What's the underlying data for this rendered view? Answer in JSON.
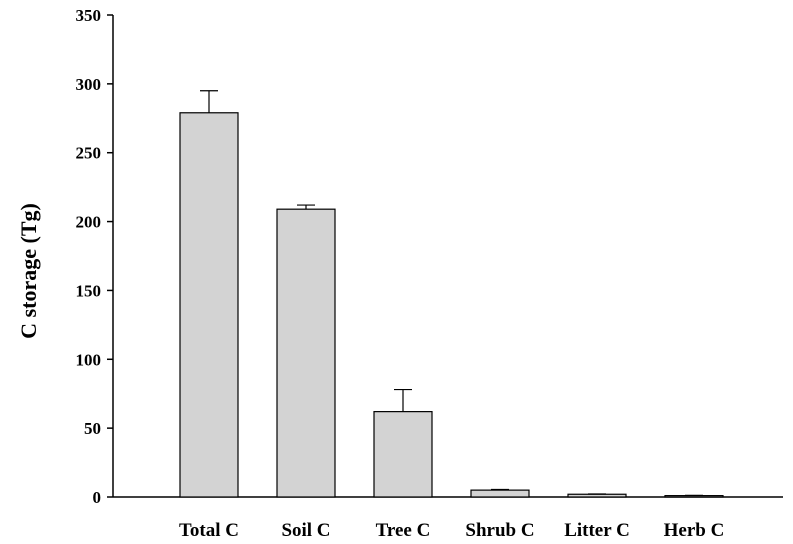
{
  "chart_data": {
    "type": "bar",
    "title": "",
    "xlabel": "",
    "ylabel": "C storage (Tg)",
    "ylim": [
      0,
      350
    ],
    "yticks": [
      0,
      50,
      100,
      150,
      200,
      250,
      300,
      350
    ],
    "ytick_labels": [
      "0",
      "50",
      "100",
      "150",
      "200",
      "250",
      "300",
      "350"
    ],
    "categories": [
      "Total C",
      "Soil C",
      "Tree C",
      "Shrub C",
      "Litter C",
      "Herb C"
    ],
    "values": [
      279,
      209,
      62,
      5,
      2,
      1
    ],
    "error_plus": [
      16,
      3,
      16,
      0.5,
      0.2,
      0.2
    ],
    "grid": false,
    "bar_color": "#d3d3d3",
    "edge_color": "#000000"
  }
}
